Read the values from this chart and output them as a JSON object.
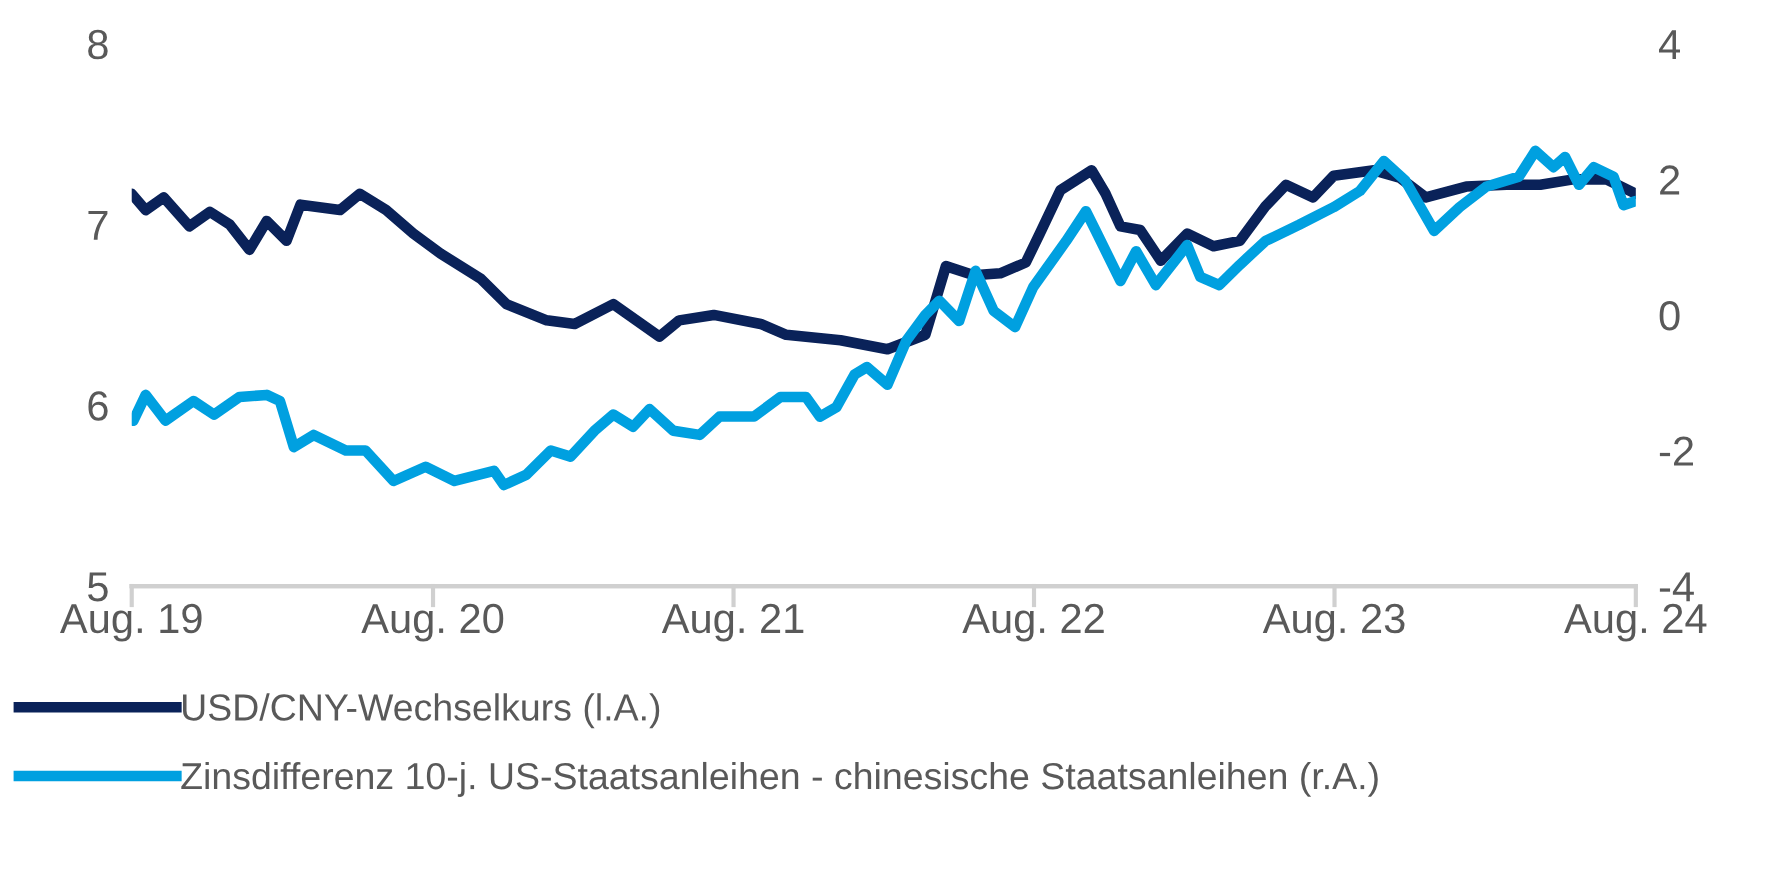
{
  "chart_data": {
    "type": "line",
    "xlim": [
      "2019-08-01",
      "2024-08-01"
    ],
    "xticks": [
      {
        "value": "2019-08-01",
        "label": "Aug. 19"
      },
      {
        "value": "2020-08-01",
        "label": "Aug. 20"
      },
      {
        "value": "2021-08-01",
        "label": "Aug. 21"
      },
      {
        "value": "2022-08-01",
        "label": "Aug. 22"
      },
      {
        "value": "2023-08-01",
        "label": "Aug. 23"
      },
      {
        "value": "2024-08-01",
        "label": "Aug. 24"
      }
    ],
    "ylim": [
      5,
      8
    ],
    "yticks": [
      5,
      6,
      7,
      8
    ],
    "y2lim": [
      -4,
      4
    ],
    "y2ticks": [
      -4,
      -2,
      0,
      2,
      4
    ],
    "grid": false,
    "legend": "bottom",
    "line_style": "solid",
    "marker": "none",
    "series": [
      {
        "name": "USD/CNY-Wechselkurs (l.A.)",
        "color": "#0a2259",
        "x": [
          "2019-08-01",
          "2019-08-18",
          "2019-09-09",
          "2019-10-10",
          "2019-11-04",
          "2019-11-28",
          "2019-12-22",
          "2020-01-12",
          "2020-02-05",
          "2020-02-22",
          "2020-04-10",
          "2020-05-04",
          "2020-06-05",
          "2020-07-08",
          "2020-08-10",
          "2020-09-28",
          "2020-10-29",
          "2020-12-17",
          "2021-01-20",
          "2021-03-08",
          "2021-05-03",
          "2021-05-27",
          "2021-07-08",
          "2021-09-03",
          "2021-10-04",
          "2021-12-09",
          "2022-02-04",
          "2022-03-22",
          "2022-04-16",
          "2022-05-20",
          "2022-06-21",
          "2022-07-22",
          "2022-08-08",
          "2022-09-02",
          "2022-10-10",
          "2022-10-27",
          "2022-11-14",
          "2022-12-08",
          "2023-01-02",
          "2023-02-03",
          "2023-03-07",
          "2023-04-08",
          "2023-05-09",
          "2023-06-03",
          "2023-07-06",
          "2023-07-31",
          "2023-09-18",
          "2023-10-19",
          "2023-11-20",
          "2024-01-08",
          "2024-02-26",
          "2024-04-07",
          "2024-05-17",
          "2024-06-26",
          "2024-08-01"
        ],
        "values": [
          7.17,
          7.08,
          7.15,
          6.99,
          7.07,
          7.0,
          6.86,
          7.02,
          6.91,
          7.11,
          7.08,
          7.17,
          7.08,
          6.95,
          6.84,
          6.7,
          6.56,
          6.47,
          6.45,
          6.56,
          6.38,
          6.47,
          6.5,
          6.45,
          6.39,
          6.36,
          6.31,
          6.39,
          6.77,
          6.72,
          6.73,
          6.79,
          6.95,
          7.19,
          7.3,
          7.17,
          6.99,
          6.97,
          6.8,
          6.95,
          6.88,
          6.91,
          7.1,
          7.22,
          7.15,
          7.27,
          7.3,
          7.26,
          7.15,
          7.21,
          7.22,
          7.22,
          7.25,
          7.25,
          7.17
        ]
      },
      {
        "name": "Zinsdifferenz 10-j. US-Staatsanleihen - chinesische Staatsanleihen (r.A.)",
        "color": "#00a0e0",
        "axis": "y2",
        "x": [
          "2019-08-03",
          "2019-08-18",
          "2019-09-11",
          "2019-10-15",
          "2019-11-09",
          "2019-12-10",
          "2020-01-12",
          "2020-01-28",
          "2020-02-14",
          "2020-03-09",
          "2020-04-17",
          "2020-05-11",
          "2020-06-14",
          "2020-07-23",
          "2020-08-27",
          "2020-10-14",
          "2020-10-26",
          "2020-11-22",
          "2020-12-22",
          "2021-01-15",
          "2021-02-13",
          "2021-03-08",
          "2021-04-01",
          "2021-04-21",
          "2021-05-20",
          "2021-06-21",
          "2021-07-15",
          "2021-08-26",
          "2021-09-27",
          "2021-10-28",
          "2021-11-14",
          "2021-12-04",
          "2021-12-26",
          "2022-01-10",
          "2022-02-04",
          "2022-02-27",
          "2022-03-22",
          "2022-04-08",
          "2022-05-02",
          "2022-05-22",
          "2022-06-13",
          "2022-07-09",
          "2022-07-31",
          "2022-09-09",
          "2022-10-03",
          "2022-10-15",
          "2022-11-14",
          "2022-12-03",
          "2022-12-27",
          "2023-02-03",
          "2023-02-19",
          "2023-03-14",
          "2023-04-08",
          "2023-05-09",
          "2023-06-19",
          "2023-07-31",
          "2023-09-01",
          "2023-09-30",
          "2023-10-26",
          "2023-11-30",
          "2023-12-31",
          "2024-02-01",
          "2024-03-12",
          "2024-04-01",
          "2024-04-23",
          "2024-05-07",
          "2024-05-24",
          "2024-06-11",
          "2024-07-05",
          "2024-07-17",
          "2024-08-01"
        ],
        "values": [
          -1.56,
          -1.18,
          -1.56,
          -1.27,
          -1.47,
          -1.21,
          -1.18,
          -1.27,
          -1.95,
          -1.77,
          -2.0,
          -2.0,
          -2.45,
          -2.24,
          -2.45,
          -2.3,
          -2.51,
          -2.36,
          -2.0,
          -2.09,
          -1.71,
          -1.47,
          -1.65,
          -1.39,
          -1.71,
          -1.77,
          -1.5,
          -1.5,
          -1.21,
          -1.21,
          -1.5,
          -1.36,
          -0.88,
          -0.77,
          -1.03,
          -0.38,
          0.0,
          0.21,
          -0.09,
          0.65,
          0.06,
          -0.18,
          0.41,
          1.09,
          1.53,
          1.24,
          0.5,
          0.94,
          0.44,
          1.03,
          0.56,
          0.44,
          0.74,
          1.09,
          1.33,
          1.59,
          1.83,
          2.27,
          1.98,
          1.24,
          1.59,
          1.89,
          2.04,
          2.42,
          2.18,
          2.33,
          1.92,
          2.18,
          2.04,
          1.62,
          1.68
        ]
      }
    ]
  }
}
